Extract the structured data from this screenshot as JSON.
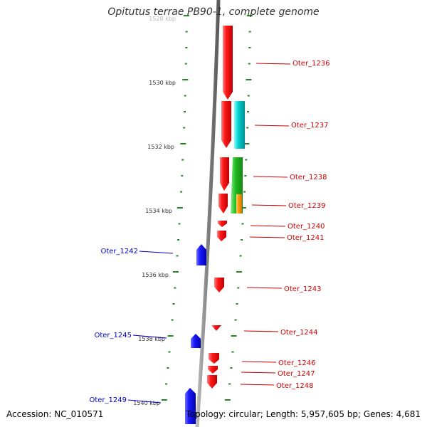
{
  "title": "Opitutus terrae PB90-1, complete genome",
  "accession": "Accession: NC_010571",
  "summary": "Topology: circular; Length: 5,957,605 bp; Genes: 4,681",
  "colors": {
    "backbone": "#8c8c8c",
    "forward_gene": "#ff0000",
    "reverse_gene": "#0000ff",
    "track_cyan": "#00cccc",
    "track_green": "#22bb22",
    "track_orange": "#ff9900",
    "tick": "#228822",
    "forward_label": "#cc0000",
    "reverse_label": "#0000cc"
  },
  "ruler_labels": [
    "1528 kbp",
    "1530 kbp",
    "1532 kbp",
    "1534 kbp",
    "1536 kbp",
    "1538 kbp",
    "1540 kbp"
  ],
  "forward_labels": [
    "Oter_1236",
    "Oter_1237",
    "Oter_1238",
    "Oter_1239",
    "Oter_1240",
    "Oter_1241",
    "Oter_1243",
    "Oter_1244",
    "Oter_1246",
    "Oter_1247",
    "Oter_1248"
  ],
  "reverse_labels": [
    "Oter_1242",
    "Oter_1245",
    "Oter_1249"
  ]
}
